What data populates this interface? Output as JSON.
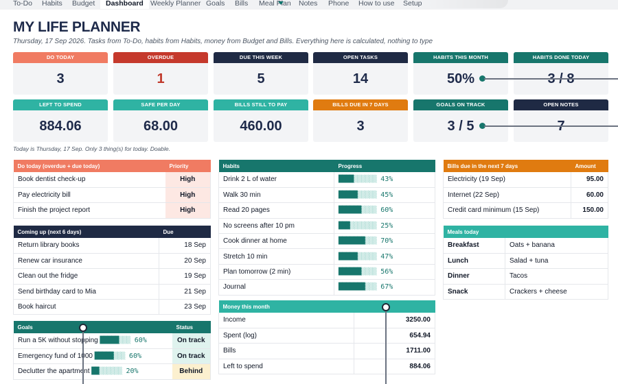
{
  "tabs": [
    "To-Do",
    "Habits",
    "Budget",
    "Dashboard",
    "Weekly Planner",
    "Goals",
    "Bills",
    "Meal Plan",
    "Notes",
    "Phone",
    "How to use",
    "Setup"
  ],
  "active_tab": "Dashboard",
  "header": {
    "title": "MY LIFE PLANNER",
    "subtitle": "Thursday, 17 Sep 2026. Tasks from To-Do, habits from Habits, money from Budget and Bills. Everything here is calculated, nothing to type"
  },
  "kpis": [
    {
      "label": "DO TODAY",
      "value": "3",
      "color": "#f07b62"
    },
    {
      "label": "OVERDUE",
      "value": "1",
      "color": "#c5392c"
    },
    {
      "label": "DUE THIS WEEK",
      "value": "5",
      "color": "#1f2a44"
    },
    {
      "label": "OPEN TASKS",
      "value": "14",
      "color": "#1f2a44"
    },
    {
      "label": "HABITS THIS MONTH",
      "value": "50%",
      "color": "#17766c"
    },
    {
      "label": "HABITS DONE TODAY",
      "value": "3 / 8",
      "color": "#17766c"
    },
    {
      "label": "LEFT TO SPEND",
      "value": "884.06",
      "color": "#2fb3a3"
    },
    {
      "label": "SAFE PER DAY",
      "value": "68.00",
      "color": "#2fb3a3"
    },
    {
      "label": "BILLS STILL TO PAY",
      "value": "460.00",
      "color": "#2fb3a3"
    },
    {
      "label": "BILLS DUE IN 7 DAYS",
      "value": "3",
      "color": "#e07b10"
    },
    {
      "label": "GOALS ON TRACK",
      "value": "3 / 5",
      "color": "#17766c"
    },
    {
      "label": "OPEN NOTES",
      "value": "7",
      "color": "#1f2a44"
    }
  ],
  "status_note": "Today is Thursday, 17 Sep. Only 3 thing(s) for today. Doable.",
  "do_today": {
    "col_task": "Do today (overdue + due today)",
    "col_priority": "Priority",
    "rows": [
      {
        "task": "Book dentist check-up",
        "priority": "High"
      },
      {
        "task": "Pay electricity bill",
        "priority": "High"
      },
      {
        "task": "Finish the project report",
        "priority": "High"
      }
    ]
  },
  "coming_up": {
    "col_task": "Coming up (next 6 days)",
    "col_due": "Due",
    "rows": [
      {
        "task": "Return library books",
        "due": "18 Sep"
      },
      {
        "task": "Renew car insurance",
        "due": "20 Sep"
      },
      {
        "task": "Clean out the fridge",
        "due": "19 Sep"
      },
      {
        "task": "Send birthday card to Mia",
        "due": "21 Sep"
      },
      {
        "task": "Book haircut",
        "due": "23 Sep"
      }
    ]
  },
  "goals": {
    "col_goal": "Goals",
    "col_status": "Status",
    "rows": [
      {
        "goal": "Run a 5K without stopping",
        "pct": 60,
        "pct_label": "60%",
        "status": "On track"
      },
      {
        "goal": "Emergency fund of 1000",
        "pct": 60,
        "pct_label": "60%",
        "status": "On track"
      },
      {
        "goal": "Declutter the apartment",
        "pct": 20,
        "pct_label": "20%",
        "status": "Behind"
      }
    ]
  },
  "habits": {
    "col_habit": "Habits",
    "col_progress": "Progress",
    "rows": [
      {
        "habit": "Drink 2 L of water",
        "pct": 43,
        "pct_label": "43%"
      },
      {
        "habit": "Walk 30 min",
        "pct": 45,
        "pct_label": "45%"
      },
      {
        "habit": "Read 20 pages",
        "pct": 60,
        "pct_label": "60%"
      },
      {
        "habit": "No screens after 10 pm",
        "pct": 25,
        "pct_label": "25%"
      },
      {
        "habit": "Cook dinner at home",
        "pct": 70,
        "pct_label": "70%"
      },
      {
        "habit": "Stretch 10 min",
        "pct": 47,
        "pct_label": "47%"
      },
      {
        "habit": "Plan tomorrow (2 min)",
        "pct": 56,
        "pct_label": "56%"
      },
      {
        "habit": "Journal",
        "pct": 67,
        "pct_label": "67%"
      }
    ]
  },
  "money": {
    "title": "Money this month",
    "rows": [
      {
        "label": "Income",
        "value": "3250.00"
      },
      {
        "label": "Spent (log)",
        "value": "654.94"
      },
      {
        "label": "Bills",
        "value": "1711.00"
      },
      {
        "label": "Left to spend",
        "value": "884.06"
      }
    ]
  },
  "bills_due": {
    "col_bill": "Bills due in the next 7 days",
    "col_amount": "Amount",
    "rows": [
      {
        "bill": "Electricity (19 Sep)",
        "amount": "95.00"
      },
      {
        "bill": "Internet (22 Sep)",
        "amount": "60.00"
      },
      {
        "bill": "Credit card minimum (15 Sep)",
        "amount": "150.00"
      }
    ]
  },
  "meals": {
    "title": "Meals today",
    "rows": [
      {
        "meal": "Breakfast",
        "food": "Oats + banana"
      },
      {
        "meal": "Lunch",
        "food": "Salad + tuna"
      },
      {
        "meal": "Dinner",
        "food": "Tacos"
      },
      {
        "meal": "Snack",
        "food": "Crackers + cheese"
      }
    ]
  }
}
